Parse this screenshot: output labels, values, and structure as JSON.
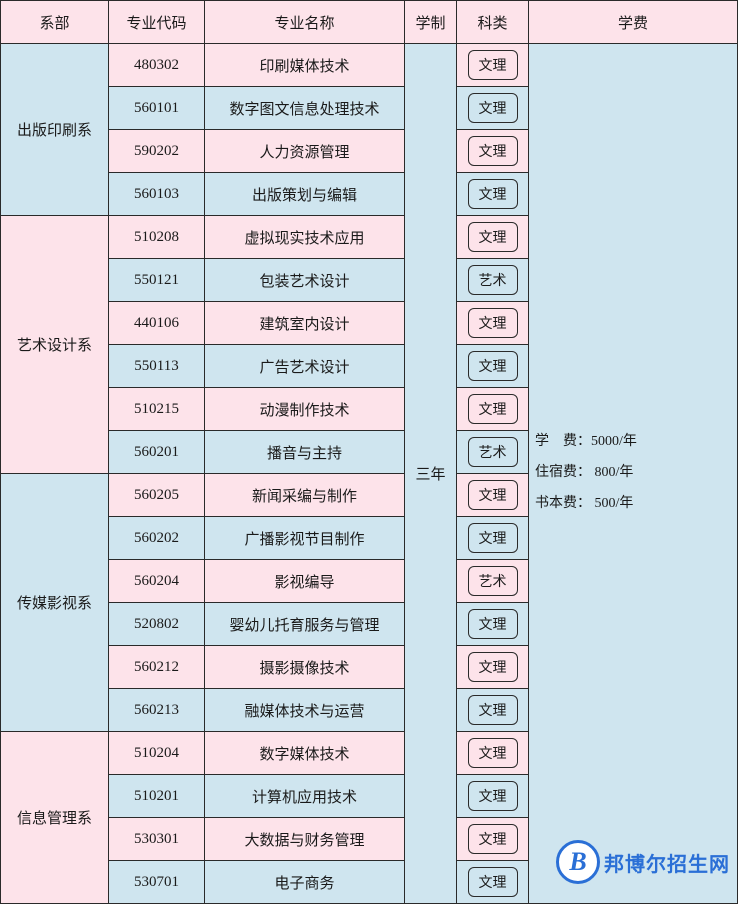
{
  "table": {
    "header": {
      "dept": "系部",
      "code": "专业代码",
      "name": "专业名称",
      "duration": "学制",
      "category": "科类",
      "fee": "学费"
    },
    "duration_value": "三年",
    "fee_lines": {
      "tuition": "学　费：5000/年",
      "dorm": "住宿费： 800/年",
      "book": "书本费： 500/年"
    },
    "departments": [
      {
        "name": "出版印刷系",
        "dept_color": "blue",
        "majors": [
          {
            "code": "480302",
            "name": "印刷媒体技术",
            "category": "文理",
            "row_color": "pink"
          },
          {
            "code": "560101",
            "name": "数字图文信息处理技术",
            "category": "文理",
            "row_color": "blue"
          },
          {
            "code": "590202",
            "name": "人力资源管理",
            "category": "文理",
            "row_color": "pink"
          },
          {
            "code": "560103",
            "name": "出版策划与编辑",
            "category": "文理",
            "row_color": "blue"
          }
        ]
      },
      {
        "name": "艺术设计系",
        "dept_color": "pink",
        "majors": [
          {
            "code": "510208",
            "name": "虚拟现实技术应用",
            "category": "文理",
            "row_color": "pink"
          },
          {
            "code": "550121",
            "name": "包装艺术设计",
            "category": "艺术",
            "row_color": "blue"
          },
          {
            "code": "440106",
            "name": "建筑室内设计",
            "category": "文理",
            "row_color": "pink"
          },
          {
            "code": "550113",
            "name": "广告艺术设计",
            "category": "文理",
            "row_color": "blue"
          },
          {
            "code": "510215",
            "name": "动漫制作技术",
            "category": "文理",
            "row_color": "pink"
          },
          {
            "code": "560201",
            "name": "播音与主持",
            "category": "艺术",
            "row_color": "blue"
          }
        ]
      },
      {
        "name": "传媒影视系",
        "dept_color": "blue",
        "majors": [
          {
            "code": "560205",
            "name": "新闻采编与制作",
            "category": "文理",
            "row_color": "pink"
          },
          {
            "code": "560202",
            "name": "广播影视节目制作",
            "category": "文理",
            "row_color": "blue"
          },
          {
            "code": "560204",
            "name": "影视编导",
            "category": "艺术",
            "row_color": "pink"
          },
          {
            "code": "520802",
            "name": "婴幼儿托育服务与管理",
            "category": "文理",
            "row_color": "blue"
          },
          {
            "code": "560212",
            "name": "摄影摄像技术",
            "category": "文理",
            "row_color": "pink"
          },
          {
            "code": "560213",
            "name": "融媒体技术与运营",
            "category": "文理",
            "row_color": "blue"
          }
        ]
      },
      {
        "name": "信息管理系",
        "dept_color": "pink",
        "majors": [
          {
            "code": "510204",
            "name": "数字媒体技术",
            "category": "文理",
            "row_color": "pink"
          },
          {
            "code": "510201",
            "name": "计算机应用技术",
            "category": "文理",
            "row_color": "blue"
          },
          {
            "code": "530301",
            "name": "大数据与财务管理",
            "category": "文理",
            "row_color": "pink"
          },
          {
            "code": "530701",
            "name": "电子商务",
            "category": "文理",
            "row_color": "blue"
          }
        ]
      }
    ]
  },
  "watermark": {
    "letter": "B",
    "text": "邦博尔招生网",
    "color": "#2a6fd6"
  },
  "colors": {
    "pink": "#fde3ea",
    "blue": "#cfe5ef",
    "border": "#2a2a2a",
    "text": "#1a1a1a"
  }
}
